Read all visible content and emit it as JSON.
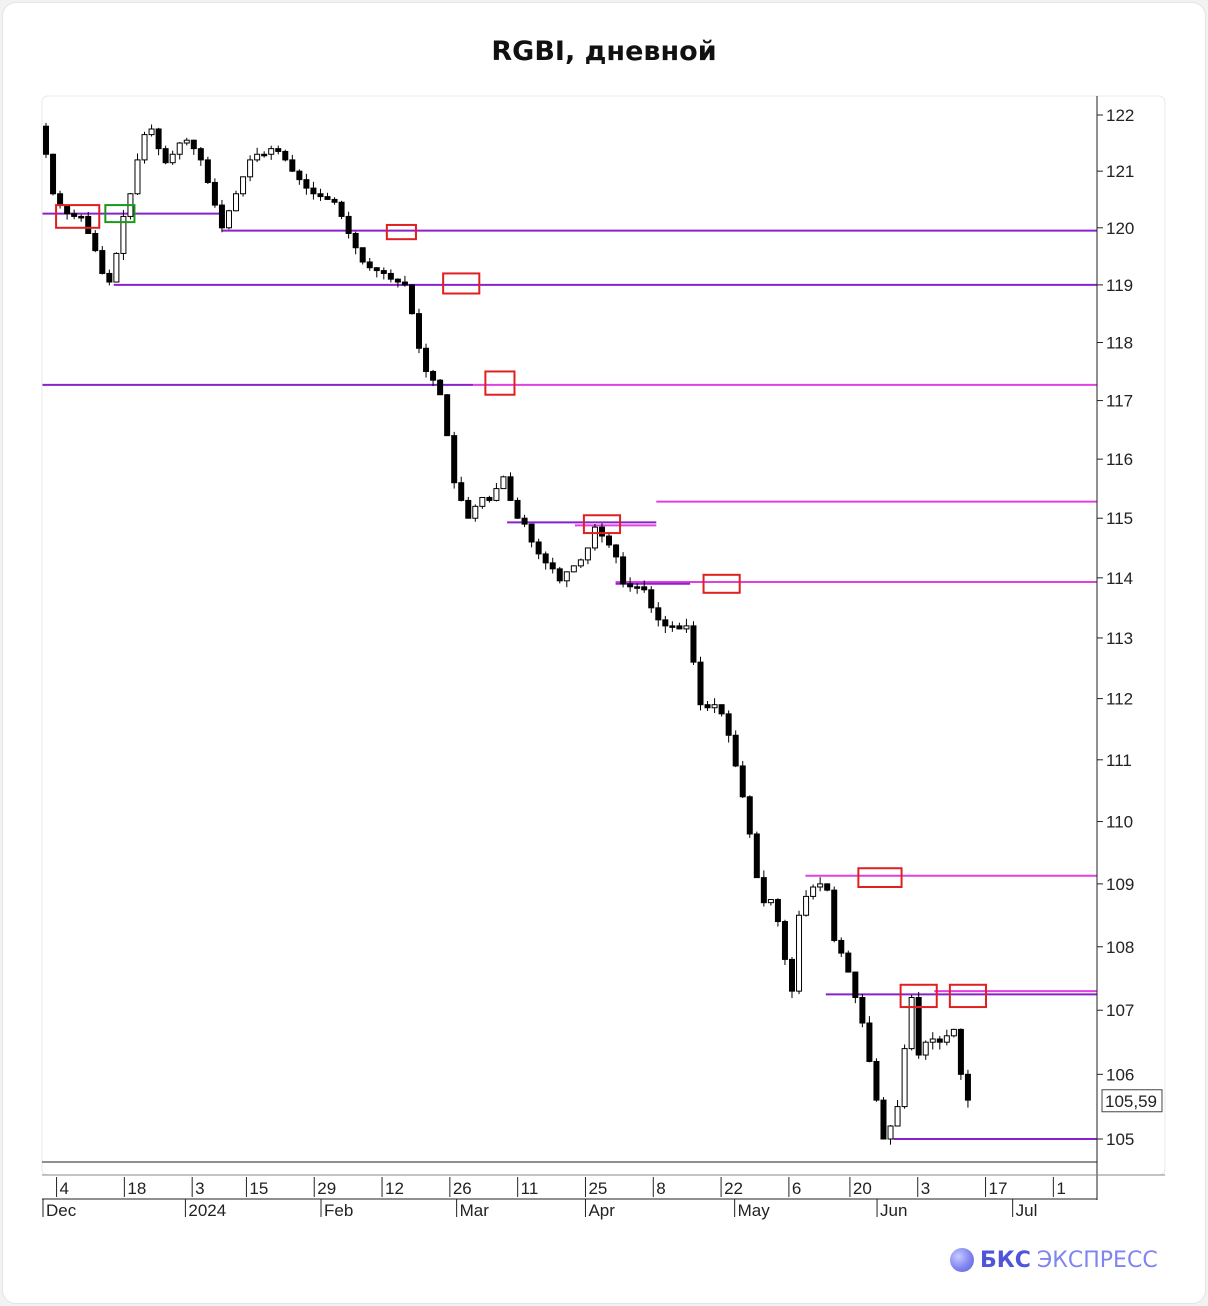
{
  "page": {
    "title": "RGBI, дневной",
    "brand_bold": "БКС",
    "brand_light": "ЭКСПРЕСС",
    "logo_icon": "bks-logo-icon"
  },
  "chart_data": {
    "type": "candlestick",
    "title": "RGBI, дневной",
    "ylim": [
      104.7,
      122.3
    ],
    "y_ticks": [
      105,
      106,
      107,
      108,
      109,
      110,
      111,
      112,
      113,
      114,
      115,
      116,
      117,
      118,
      119,
      120,
      121,
      122
    ],
    "last_price": 105.59,
    "last_price_label": "105,59",
    "x_day_ticks": [
      {
        "label": "4",
        "index": 2
      },
      {
        "label": "18",
        "index": 12
      },
      {
        "label": "3",
        "index": 22
      },
      {
        "label": "15",
        "index": 30
      },
      {
        "label": "29",
        "index": 40
      },
      {
        "label": "12",
        "index": 50
      },
      {
        "label": "26",
        "index": 60
      },
      {
        "label": "11",
        "index": 70
      },
      {
        "label": "25",
        "index": 80
      },
      {
        "label": "8",
        "index": 90
      },
      {
        "label": "22",
        "index": 100
      },
      {
        "label": "6",
        "index": 110
      },
      {
        "label": "20",
        "index": 119
      },
      {
        "label": "3",
        "index": 129
      },
      {
        "label": "17",
        "index": 139
      },
      {
        "label": "1",
        "index": 149
      }
    ],
    "x_month_ticks": [
      {
        "label": "Dec",
        "index": 0
      },
      {
        "label": "2024",
        "index": 21
      },
      {
        "label": "Feb",
        "index": 41
      },
      {
        "label": "Mar",
        "index": 61
      },
      {
        "label": "Apr",
        "index": 80
      },
      {
        "label": "May",
        "index": 102
      },
      {
        "label": "Jun",
        "index": 123
      },
      {
        "label": "Jul",
        "index": 143
      }
    ],
    "candle_count": 155,
    "anchors": [
      [
        0,
        121.8
      ],
      [
        1,
        121.3
      ],
      [
        2,
        120.6
      ],
      [
        3,
        120.4
      ],
      [
        4,
        120.25
      ],
      [
        5,
        120.2
      ],
      [
        6,
        120.2
      ],
      [
        7,
        119.9
      ],
      [
        8,
        119.6
      ],
      [
        9,
        119.2
      ],
      [
        10,
        119.05
      ],
      [
        11,
        119.55
      ],
      [
        12,
        120.2
      ],
      [
        13,
        120.6
      ],
      [
        14,
        121.2
      ],
      [
        15,
        121.65
      ],
      [
        16,
        121.75
      ],
      [
        17,
        121.4
      ],
      [
        18,
        121.15
      ],
      [
        19,
        121.3
      ],
      [
        20,
        121.5
      ],
      [
        21,
        121.55
      ],
      [
        22,
        121.4
      ],
      [
        23,
        121.2
      ],
      [
        24,
        120.8
      ],
      [
        25,
        120.4
      ],
      [
        26,
        120.0
      ],
      [
        27,
        120.3
      ],
      [
        28,
        120.6
      ],
      [
        29,
        120.9
      ],
      [
        30,
        121.2
      ],
      [
        31,
        121.3
      ],
      [
        32,
        121.3
      ],
      [
        33,
        121.4
      ],
      [
        34,
        121.35
      ],
      [
        35,
        121.2
      ],
      [
        36,
        121.0
      ],
      [
        37,
        120.85
      ],
      [
        38,
        120.7
      ],
      [
        39,
        120.6
      ],
      [
        40,
        120.55
      ],
      [
        41,
        120.5
      ],
      [
        42,
        120.45
      ],
      [
        43,
        120.2
      ],
      [
        44,
        119.9
      ],
      [
        45,
        119.65
      ],
      [
        46,
        119.4
      ],
      [
        47,
        119.3
      ],
      [
        48,
        119.25
      ],
      [
        49,
        119.2
      ],
      [
        50,
        119.1
      ],
      [
        51,
        119.05
      ],
      [
        52,
        119.0
      ],
      [
        53,
        118.5
      ],
      [
        54,
        117.9
      ],
      [
        55,
        117.5
      ],
      [
        56,
        117.35
      ],
      [
        57,
        117.1
      ],
      [
        58,
        116.4
      ],
      [
        59,
        115.6
      ],
      [
        60,
        115.3
      ],
      [
        61,
        115.0
      ],
      [
        62,
        115.2
      ],
      [
        63,
        115.35
      ],
      [
        64,
        115.3
      ],
      [
        65,
        115.5
      ],
      [
        66,
        115.7
      ],
      [
        67,
        115.3
      ],
      [
        68,
        115.0
      ],
      [
        69,
        114.9
      ],
      [
        70,
        114.6
      ],
      [
        71,
        114.4
      ],
      [
        72,
        114.25
      ],
      [
        73,
        114.15
      ],
      [
        74,
        113.95
      ],
      [
        75,
        114.1
      ],
      [
        76,
        114.2
      ],
      [
        77,
        114.3
      ],
      [
        78,
        114.5
      ],
      [
        79,
        114.85
      ],
      [
        80,
        114.7
      ],
      [
        81,
        114.55
      ],
      [
        82,
        114.35
      ],
      [
        83,
        113.9
      ],
      [
        84,
        113.85
      ],
      [
        85,
        113.85
      ],
      [
        86,
        113.8
      ],
      [
        87,
        113.5
      ],
      [
        88,
        113.3
      ],
      [
        89,
        113.2
      ],
      [
        90,
        113.2
      ],
      [
        91,
        113.15
      ],
      [
        92,
        113.2
      ],
      [
        93,
        112.6
      ],
      [
        94,
        111.9
      ],
      [
        95,
        111.85
      ],
      [
        96,
        111.9
      ],
      [
        97,
        111.75
      ],
      [
        98,
        111.4
      ],
      [
        99,
        110.9
      ],
      [
        100,
        110.4
      ],
      [
        101,
        109.8
      ],
      [
        102,
        109.1
      ],
      [
        103,
        108.7
      ],
      [
        104,
        108.75
      ],
      [
        105,
        108.4
      ],
      [
        106,
        107.8
      ],
      [
        107,
        107.3
      ],
      [
        108,
        108.5
      ],
      [
        109,
        108.8
      ],
      [
        110,
        108.95
      ],
      [
        111,
        109.0
      ],
      [
        112,
        108.9
      ],
      [
        113,
        108.1
      ],
      [
        114,
        107.9
      ],
      [
        115,
        107.6
      ],
      [
        116,
        107.2
      ],
      [
        117,
        106.8
      ],
      [
        118,
        106.2
      ],
      [
        119,
        105.6
      ],
      [
        120,
        105.0
      ],
      [
        121,
        105.2
      ],
      [
        122,
        105.5
      ],
      [
        123,
        106.4
      ],
      [
        124,
        107.2
      ],
      [
        125,
        106.3
      ],
      [
        126,
        106.5
      ],
      [
        127,
        106.55
      ],
      [
        128,
        106.5
      ],
      [
        129,
        106.6
      ],
      [
        130,
        106.7
      ],
      [
        131,
        106.0
      ],
      [
        132,
        105.6
      ]
    ],
    "horizontal_levels": [
      {
        "name": "",
        "price": 120.25,
        "from_index": 0,
        "to_index": 26,
        "color": "#8a22cc"
      },
      {
        "name": "",
        "price": 119.95,
        "from_index": 26,
        "to_index": 155,
        "color": "#8a22cc"
      },
      {
        "name": "",
        "price": 119.0,
        "from_index": 10,
        "to_index": 155,
        "color": "#8a22cc"
      },
      {
        "name": "",
        "price": 117.27,
        "from_index": 0,
        "to_index": 63,
        "color": "#8a22cc"
      },
      {
        "name": "",
        "price": 117.27,
        "from_index": 63,
        "to_index": 155,
        "color": "#e040e0"
      },
      {
        "name": "",
        "price": 115.28,
        "from_index": 90,
        "to_index": 155,
        "color": "#e040e0"
      },
      {
        "name": "",
        "price": 114.93,
        "from_index": 68,
        "to_index": 90,
        "color": "#8a22cc"
      },
      {
        "name": "",
        "price": 114.88,
        "from_index": 78,
        "to_index": 90,
        "color": "#e040e0"
      },
      {
        "name": "",
        "price": 113.93,
        "from_index": 84,
        "to_index": 155,
        "color": "#e040e0"
      },
      {
        "name": "",
        "price": 113.9,
        "from_index": 84,
        "to_index": 95,
        "color": "#8a22cc"
      },
      {
        "name": "",
        "price": 109.13,
        "from_index": 112,
        "to_index": 155,
        "color": "#e040e0"
      },
      {
        "name": "",
        "price": 107.3,
        "from_index": 131,
        "to_index": 155,
        "color": "#e040e0"
      },
      {
        "name": "",
        "price": 107.25,
        "from_index": 115,
        "to_index": 155,
        "color": "#8a22cc"
      },
      {
        "name": "",
        "price": 105.0,
        "from_index": 125,
        "to_index": 155,
        "color": "#8a22cc"
      }
    ],
    "highlight_boxes": [
      {
        "index_from": 2,
        "index_to": 7,
        "price_low": 120.0,
        "price_high": 120.4,
        "color": "#e02020"
      },
      {
        "index_from": 9,
        "index_to": 12,
        "price_low": 120.1,
        "price_high": 120.4,
        "color": "#1a9a1a"
      },
      {
        "index_from": 49,
        "index_to": 52,
        "price_low": 119.8,
        "price_high": 120.05,
        "color": "#e02020"
      },
      {
        "index_from": 57,
        "index_to": 61,
        "price_low": 118.85,
        "price_high": 119.2,
        "color": "#e02020"
      },
      {
        "index_from": 63,
        "index_to": 66,
        "price_low": 117.1,
        "price_high": 117.5,
        "color": "#e02020"
      },
      {
        "index_from": 77,
        "index_to": 81,
        "price_low": 114.75,
        "price_high": 115.05,
        "color": "#e02020"
      },
      {
        "index_from": 94,
        "index_to": 98,
        "price_low": 113.75,
        "price_high": 114.05,
        "color": "#e02020"
      },
      {
        "index_from": 116,
        "index_to": 121,
        "price_low": 108.95,
        "price_high": 109.25,
        "color": "#e02020"
      },
      {
        "index_from": 122,
        "index_to": 126,
        "price_low": 107.05,
        "price_high": 107.4,
        "color": "#e02020"
      },
      {
        "index_from": 129,
        "index_to": 133,
        "price_low": 107.05,
        "price_high": 107.4,
        "color": "#e02020"
      }
    ]
  }
}
